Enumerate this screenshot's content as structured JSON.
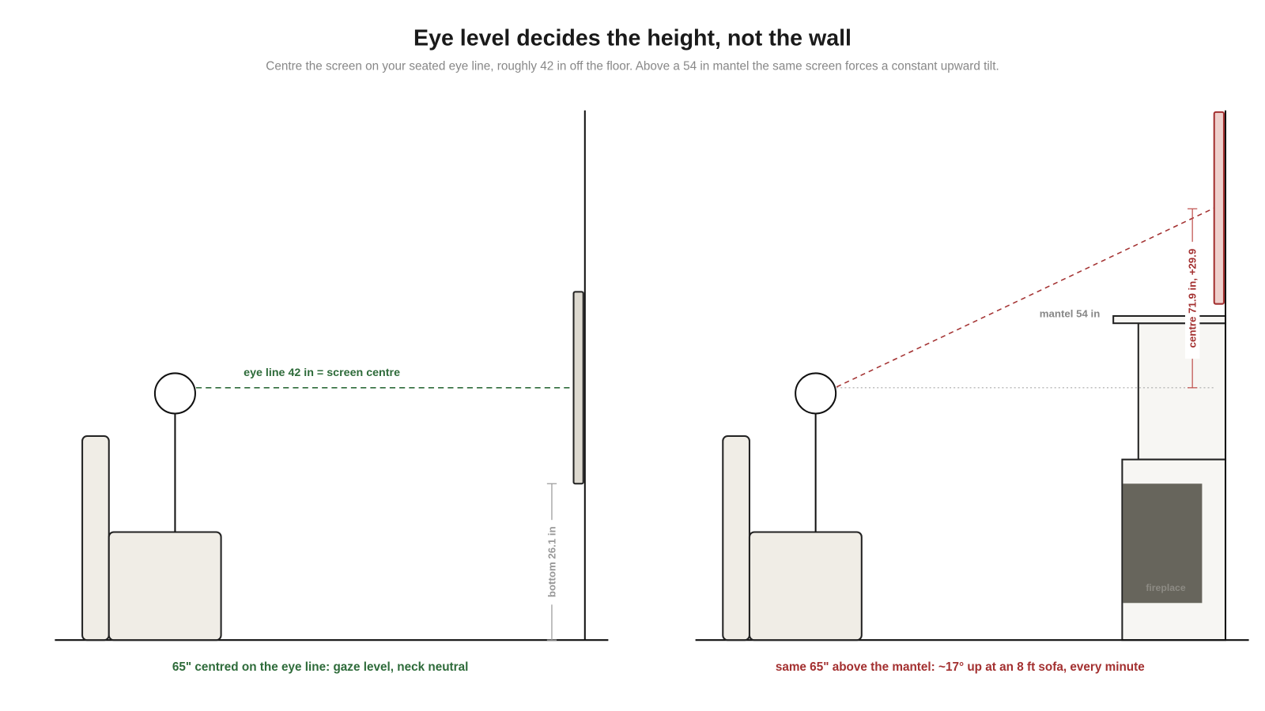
{
  "header": {
    "title": "Eye level decides the height, not the wall",
    "subtitle": "Centre the screen on your seated eye line, roughly 42 in off the floor. Above a 54 in mantel the same screen forces a constant upward tilt."
  },
  "panels": [
    {
      "eye_line_label": "eye line 42 in = screen centre",
      "dimension_label": "bottom 26.1 in",
      "caption": "65\" centred on the eye line: gaze level, neck neutral"
    },
    {
      "mantel_label": "mantel 54 in",
      "dimension_label": "centre 71.9 in, +29.9",
      "fireplace_label": "fireplace",
      "caption": "same 65\" above the mantel: ~17° up at an 8 ft sofa, every minute"
    }
  ]
}
